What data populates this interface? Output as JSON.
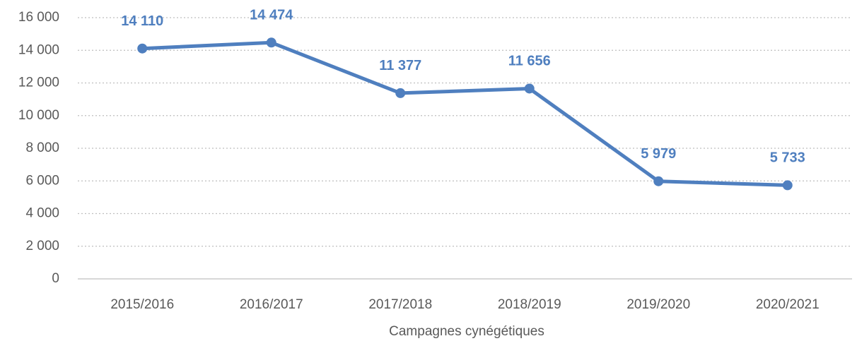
{
  "chart_data": {
    "type": "line",
    "x_label": "Campagnes cynégétiques",
    "categories": [
      "2015/2016",
      "2016/2017",
      "2017/2018",
      "2018/2019",
      "2019/2020",
      "2020/2021"
    ],
    "series": [
      {
        "color": "#4f7fbf",
        "values": [
          14110,
          14474,
          11377,
          11656,
          5979,
          5733
        ],
        "value_labels": [
          "14 110",
          "14 474",
          "11 377",
          "11 656",
          "5 979",
          "5 733"
        ]
      }
    ],
    "ylim": [
      0,
      16000
    ],
    "yticks": [
      0,
      {
        "value": 2000,
        "label": "2 000"
      },
      {
        "value": 4000,
        "label": "4 000"
      },
      {
        "value": 6000,
        "label": "6 000"
      },
      {
        "value": 8000,
        "label": "8 000"
      },
      {
        "value": 10000,
        "label": "10 000"
      },
      {
        "value": 12000,
        "label": "12 000"
      },
      {
        "value": 14000,
        "label": "14 000"
      },
      {
        "value": 16000,
        "label": "16 000"
      }
    ],
    "grid": true
  }
}
